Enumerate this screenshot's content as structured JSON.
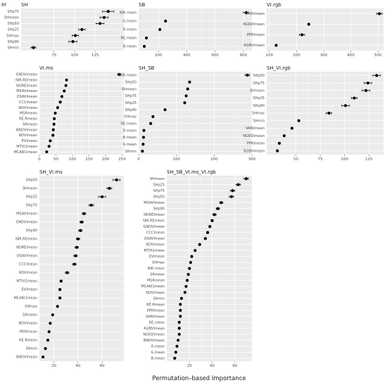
{
  "corner_label": "RF",
  "xlabel": "Permutation–based Importance",
  "chart_data": [
    {
      "type": "scatter",
      "title": "SH",
      "xlim": [
        35,
        160
      ],
      "xticks": [
        75,
        100,
        125
      ],
      "categories": [
        "SHp75",
        "SHmean",
        "SHp50",
        "SHp25",
        "SHmax",
        "SHp90",
        "SHmin"
      ],
      "values": [
        141,
        136,
        131,
        109,
        101,
        98,
        50
      ],
      "error": [
        7,
        5,
        5,
        4,
        4,
        5,
        3
      ]
    },
    {
      "type": "scatter",
      "title": "SB",
      "xlim": [
        60,
        860
      ],
      "xticks": [
        200,
        400,
        600,
        800
      ],
      "categories": [
        "NIR.mean",
        "G.mean",
        "R.mean",
        "RE.mean",
        "B.mean"
      ],
      "values": [
        820,
        250,
        210,
        115,
        100
      ],
      "error": [
        20,
        0,
        0,
        0,
        0
      ]
    },
    {
      "type": "scatter",
      "title": "VI.rgb",
      "xlim": [
        90,
        520
      ],
      "xticks": [
        100,
        200,
        300,
        400,
        500
      ],
      "categories": [
        "VARIlmean",
        "NGRDImean",
        "PPRImean",
        "RGBVImean"
      ],
      "values": [
        505,
        245,
        220,
        125
      ],
      "error": [
        10,
        0,
        10,
        0
      ]
    },
    {
      "type": "scatter",
      "title": "VI.ms",
      "xlim": [
        0,
        255
      ],
      "xticks": [
        0,
        50,
        100,
        150,
        200,
        250
      ],
      "categories": [
        "GNDVImean",
        "NIR.REmean",
        "NDREImean",
        "MSAVImean",
        "OSAVImean",
        "CCCImean",
        "NDVImean",
        "MSRmean",
        "RE.Rmean",
        "SRmean",
        "BNDVImean",
        "RDVImean",
        "EVImean",
        "MTVI2mean",
        "MCARI1mean"
      ],
      "values": [
        241,
        82,
        80,
        75,
        68,
        63,
        55,
        48,
        45,
        44,
        42,
        41,
        33,
        29,
        22
      ],
      "error": [
        5,
        0,
        0,
        0,
        0,
        0,
        0,
        0,
        0,
        0,
        0,
        0,
        0,
        0,
        0
      ]
    },
    {
      "type": "scatter",
      "title": "SH_SB",
      "xlim": [
        0,
        300
      ],
      "xticks": [
        0,
        100,
        200,
        300
      ],
      "categories": [
        "NIR.mean",
        "SHp50",
        "SHmean",
        "SHp75",
        "SHp25",
        "SHp90",
        "SHmax",
        "RE.mean",
        "R.mean",
        "B.mean",
        "G.mean",
        "SHmin"
      ],
      "values": [
        288,
        135,
        130,
        126,
        122,
        70,
        38,
        32,
        14,
        13,
        12,
        10
      ],
      "error": [
        6,
        0,
        0,
        0,
        0,
        0,
        0,
        0,
        0,
        0,
        0,
        0
      ]
    },
    {
      "type": "scatter",
      "title": "SH_VI.rgb",
      "xlim": [
        20,
        140
      ],
      "xticks": [
        50,
        75,
        100,
        125
      ],
      "categories": [
        "SHp50",
        "SHp75",
        "SHmean",
        "SHp25",
        "SHp90",
        "SHmax",
        "SHmin",
        "VARIlmean",
        "NGRDImean",
        "PPRImean",
        "RGBVImean"
      ],
      "values": [
        133,
        124,
        122,
        110,
        101,
        84,
        53,
        46,
        38,
        33,
        31
      ],
      "error": [
        4,
        4,
        4,
        3,
        4,
        3,
        0,
        0,
        0,
        0,
        0
      ]
    },
    {
      "type": "scatter",
      "title": "SH_VI.ms",
      "xlim": [
        8,
        78
      ],
      "xticks": [
        20,
        40,
        60
      ],
      "categories": [
        "SHp50",
        "SHmean",
        "SHp25",
        "SHp75",
        "MSAVImean",
        "GNDVImean",
        "SHp90",
        "NIR.REmean",
        "NDREImean",
        "OSAVImean",
        "CCCImean",
        "RDVImean",
        "MTVI2mean",
        "EVImean",
        "MCARI1mean",
        "SHmax",
        "SRmean",
        "NDVImean",
        "MSRmean",
        "RE.Rmean",
        "SHmin",
        "BNDVImean"
      ],
      "values": [
        72,
        66,
        60,
        51,
        45,
        43,
        42,
        40,
        39,
        38,
        37,
        31,
        26,
        25,
        25,
        23,
        19,
        17,
        16,
        15,
        13,
        11
      ],
      "error": [
        3,
        2,
        3,
        2,
        1.5,
        1.5,
        1.5,
        1.5,
        1.5,
        1.5,
        1.5,
        1.5,
        1,
        1,
        1,
        0,
        0,
        0,
        0,
        0,
        0,
        0
      ]
    },
    {
      "type": "scatter",
      "title": "SH_SB_VI.ms_VI.rgb",
      "xlim": [
        0,
        75
      ],
      "xticks": [
        20,
        40,
        60
      ],
      "categories": [
        "SHmean",
        "SHp25",
        "SHp75",
        "SHp50",
        "MSAVImean",
        "SHp90",
        "NDREImean",
        "NIR.REmean",
        "GNDVImean",
        "CCCImean",
        "OSAVImean",
        "RDVImean",
        "MTVI2mean",
        "EVImean",
        "SHmax",
        "NIR.mean",
        "SRmean",
        "MSRmean",
        "MCARI1mean",
        "NDVImean",
        "SHmin",
        "RE.Rmean",
        "PPRImean",
        "VARIlmean",
        "RE.mean",
        "RGBVImean",
        "NGRDImean",
        "BNDVImean",
        "R.mean",
        "G.mean",
        "B.mean"
      ],
      "values": [
        70,
        63,
        58,
        57,
        48,
        45,
        42,
        40,
        38,
        36,
        34,
        29,
        25,
        22,
        21,
        20,
        19,
        18,
        17,
        16,
        13,
        12,
        12,
        12,
        11,
        11,
        11,
        10,
        9,
        8,
        7
      ],
      "error": [
        2,
        2,
        2,
        2,
        1.5,
        1.5,
        1.5,
        1,
        1,
        1,
        1,
        1,
        0,
        0,
        0,
        0,
        0,
        0,
        0,
        0,
        0,
        0,
        0,
        0,
        0,
        0,
        0,
        0,
        0,
        0,
        0
      ]
    }
  ]
}
